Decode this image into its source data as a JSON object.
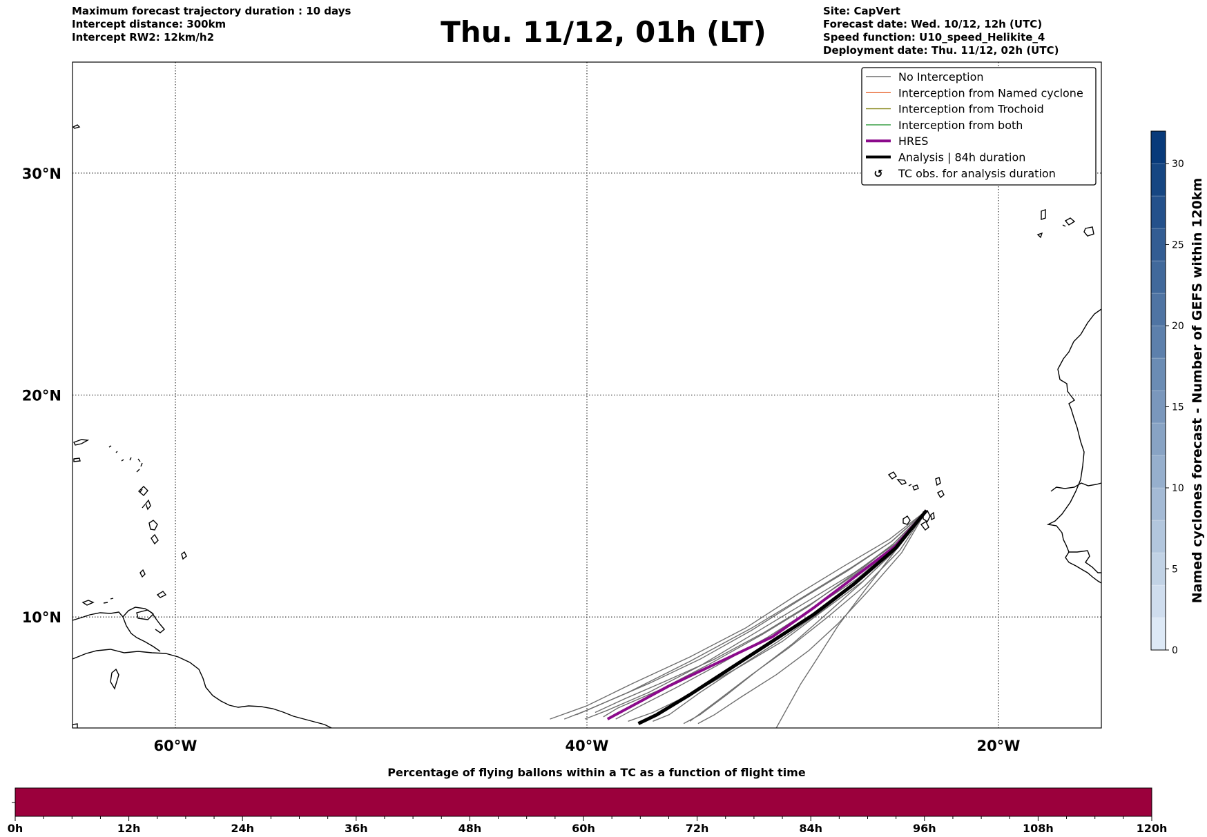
{
  "header": {
    "left_lines": [
      "Maximum forecast trajectory duration : 10 days",
      "Intercept distance: 300km",
      "Intercept RW2: 12km/h2"
    ],
    "title": "Thu. 11/12, 01h (LT)",
    "right_lines": [
      "Site: CapVert",
      "Forecast date: Wed. 10/12, 12h (UTC)",
      "Speed function: U10_speed_Helikite_4",
      "Deployment date: Thu. 11/12, 02h (UTC)"
    ]
  },
  "map": {
    "lon_ticks": [
      {
        "lon": -60,
        "label": "60°W"
      },
      {
        "lon": -40,
        "label": "40°W"
      },
      {
        "lon": -20,
        "label": "20°W"
      }
    ],
    "lat_ticks": [
      {
        "lat": 30,
        "label": "30°N"
      },
      {
        "lat": 20,
        "label": "20°N"
      },
      {
        "lat": 10,
        "label": "10°N"
      }
    ],
    "gridlines": "dotted",
    "legend_position": "top-right"
  },
  "legend": {
    "items": [
      {
        "label": "No Interception",
        "color": "#6f6f6f",
        "style": "thin"
      },
      {
        "label": "Interception from Named cyclone",
        "color": "#e8632b",
        "style": "thin"
      },
      {
        "label": "Interception from Trochoid",
        "color": "#8a8a1f",
        "style": "thin"
      },
      {
        "label": "Interception from both",
        "color": "#2e9a3a",
        "style": "thin"
      },
      {
        "label": "HRES",
        "color": "#8b0a8b",
        "style": "thick"
      },
      {
        "label": "Analysis | 84h duration",
        "color": "#000000",
        "style": "thick"
      },
      {
        "label": "TC obs. for analysis duration",
        "color": "#000000",
        "style": "symbol"
      }
    ]
  },
  "colorbar": {
    "label": "Named cyclones forecast - Number of GEFS within 120km",
    "ticks": [
      0,
      5,
      10,
      15,
      20,
      25,
      30
    ],
    "min": 0,
    "max": 32,
    "color_low": "#dde9f6",
    "color_high": "#083a7a"
  },
  "bottom_bar": {
    "title": "Percentage of flying ballons within a TC as a function of flight time",
    "tick_labels": [
      "0h",
      "12h",
      "24h",
      "36h",
      "48h",
      "60h",
      "72h",
      "84h",
      "96h",
      "108h",
      "120h"
    ],
    "fill_color": "#9b003c"
  },
  "chart_data": {
    "type": "line",
    "x_axis": "longitude",
    "y_axis": "latitude",
    "xlim": [
      -65,
      -15
    ],
    "ylim": [
      5,
      35
    ],
    "launch_point": {
      "lon": -23.5,
      "lat": 14.8
    },
    "series": [
      {
        "name": "HRES",
        "points": [
          [
            -23.5,
            14.8
          ],
          [
            -25.0,
            13.2
          ],
          [
            -27.0,
            11.8
          ],
          [
            -29.0,
            10.4
          ],
          [
            -31.0,
            9.1
          ],
          [
            -33.5,
            8.0
          ],
          [
            -36.0,
            6.9
          ],
          [
            -38.0,
            5.9
          ],
          [
            -39.0,
            5.4
          ]
        ]
      },
      {
        "name": "Analysis | 84h duration",
        "points": [
          [
            -23.5,
            14.8
          ],
          [
            -25.0,
            13.1
          ],
          [
            -27.0,
            11.5
          ],
          [
            -29.0,
            10.1
          ],
          [
            -31.0,
            8.9
          ],
          [
            -33.0,
            7.7
          ],
          [
            -35.0,
            6.5
          ],
          [
            -36.6,
            5.6
          ],
          [
            -37.5,
            5.2
          ]
        ]
      },
      {
        "name": "No Interception",
        "members": [
          [
            [
              -23.5,
              14.8
            ],
            [
              -25.2,
              13.4
            ],
            [
              -27.2,
              12.2
            ],
            [
              -29.5,
              10.9
            ],
            [
              -32.0,
              9.5
            ],
            [
              -35.0,
              8.0
            ],
            [
              -38.0,
              6.6
            ],
            [
              -40.0,
              5.8
            ],
            [
              -41.1,
              5.4
            ]
          ],
          [
            [
              -23.5,
              14.8
            ],
            [
              -25.0,
              13.3
            ],
            [
              -27.0,
              12.0
            ],
            [
              -29.3,
              10.7
            ],
            [
              -31.8,
              9.3
            ],
            [
              -34.5,
              7.8
            ],
            [
              -37.0,
              6.6
            ],
            [
              -39.0,
              5.8
            ],
            [
              -40.1,
              5.4
            ]
          ],
          [
            [
              -23.5,
              14.8
            ],
            [
              -24.9,
              13.1
            ],
            [
              -26.6,
              11.6
            ],
            [
              -28.5,
              10.3
            ],
            [
              -30.5,
              8.9
            ],
            [
              -32.5,
              7.8
            ],
            [
              -34.8,
              6.6
            ],
            [
              -36.8,
              5.7
            ],
            [
              -38.0,
              5.3
            ]
          ],
          [
            [
              -23.5,
              14.8
            ],
            [
              -25.1,
              13.3
            ],
            [
              -27.1,
              11.9
            ],
            [
              -29.2,
              10.5
            ],
            [
              -31.5,
              9.2
            ],
            [
              -34.0,
              7.9
            ],
            [
              -36.5,
              6.7
            ],
            [
              -38.5,
              5.9
            ],
            [
              -39.2,
              5.5
            ]
          ],
          [
            [
              -23.5,
              14.8
            ],
            [
              -25.0,
              13.1
            ],
            [
              -26.8,
              11.6
            ],
            [
              -28.7,
              10.2
            ],
            [
              -30.7,
              8.9
            ],
            [
              -32.7,
              7.7
            ],
            [
              -34.5,
              6.6
            ],
            [
              -36.0,
              5.6
            ],
            [
              -36.8,
              5.3
            ]
          ],
          [
            [
              -23.5,
              14.8
            ],
            [
              -24.8,
              13.0
            ],
            [
              -26.5,
              11.4
            ],
            [
              -28.3,
              10.0
            ],
            [
              -30.2,
              8.6
            ],
            [
              -32.0,
              7.4
            ],
            [
              -33.7,
              6.2
            ],
            [
              -35.0,
              5.3
            ]
          ],
          [
            [
              -23.5,
              14.8
            ],
            [
              -25.3,
              13.5
            ],
            [
              -27.5,
              12.3
            ],
            [
              -29.8,
              11.0
            ],
            [
              -32.3,
              9.5
            ],
            [
              -35.0,
              8.2
            ],
            [
              -37.8,
              7.0
            ],
            [
              -40.0,
              6.0
            ],
            [
              -41.8,
              5.4
            ]
          ],
          [
            [
              -23.5,
              14.8
            ],
            [
              -25.2,
              13.4
            ],
            [
              -27.3,
              12.1
            ],
            [
              -29.6,
              10.8
            ],
            [
              -32.0,
              9.4
            ],
            [
              -34.5,
              8.1
            ],
            [
              -37.0,
              7.0
            ],
            [
              -39.0,
              6.2
            ],
            [
              -40.5,
              5.6
            ]
          ],
          [
            [
              -23.5,
              14.8
            ],
            [
              -24.9,
              13.1
            ],
            [
              -26.7,
              11.5
            ],
            [
              -28.4,
              10.1
            ],
            [
              -30.0,
              8.8
            ],
            [
              -31.7,
              7.6
            ],
            [
              -33.2,
              6.5
            ],
            [
              -34.5,
              5.6
            ],
            [
              -35.3,
              5.2
            ]
          ],
          [
            [
              -23.5,
              14.8
            ],
            [
              -25.1,
              13.3
            ],
            [
              -27.0,
              11.9
            ],
            [
              -29.1,
              10.6
            ],
            [
              -31.4,
              9.3
            ],
            [
              -33.8,
              8.1
            ],
            [
              -36.2,
              7.1
            ],
            [
              -38.2,
              6.3
            ],
            [
              -39.6,
              5.7
            ]
          ],
          [
            [
              -23.5,
              14.8
            ],
            [
              -25.0,
              13.2
            ],
            [
              -26.9,
              11.7
            ],
            [
              -29.0,
              10.4
            ],
            [
              -31.2,
              9.1
            ],
            [
              -33.5,
              7.9
            ],
            [
              -35.7,
              6.8
            ],
            [
              -37.6,
              5.9
            ],
            [
              -38.6,
              5.4
            ]
          ],
          [
            [
              -23.5,
              14.8
            ],
            [
              -24.7,
              12.9
            ],
            [
              -26.3,
              11.2
            ],
            [
              -27.8,
              9.7
            ],
            [
              -29.2,
              8.5
            ],
            [
              -30.8,
              7.4
            ],
            [
              -32.5,
              6.4
            ],
            [
              -33.8,
              5.6
            ],
            [
              -34.6,
              5.2
            ]
          ],
          [
            [
              -23.5,
              14.8
            ],
            [
              -25.0,
              13.0
            ],
            [
              -26.5,
              11.2
            ],
            [
              -27.8,
              9.6
            ],
            [
              -28.9,
              8.0
            ],
            [
              -29.6,
              7.0
            ],
            [
              -30.2,
              6.0
            ],
            [
              -30.8,
              5.0
            ]
          ]
        ]
      }
    ]
  }
}
